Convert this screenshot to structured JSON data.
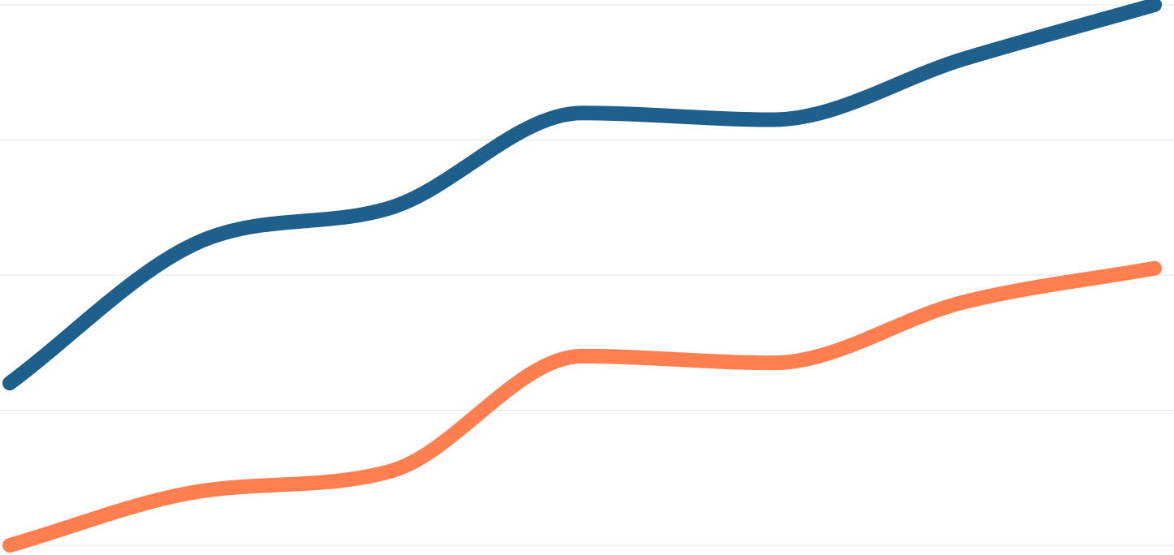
{
  "chart_data": {
    "type": "line",
    "title": "",
    "xlabel": "",
    "ylabel": "",
    "x": [
      0,
      1,
      2,
      3,
      4,
      5,
      6
    ],
    "ylim": [
      0,
      4
    ],
    "grid": true,
    "legend": "none",
    "smooth": true,
    "series": [
      {
        "color": "#1f5f8b",
        "values": [
          1.2,
          2.25,
          2.5,
          3.2,
          3.15,
          3.6,
          4.0
        ]
      },
      {
        "color": "#ff7f50",
        "values": [
          0.0,
          0.4,
          0.55,
          1.4,
          1.35,
          1.8,
          2.05
        ]
      }
    ]
  }
}
